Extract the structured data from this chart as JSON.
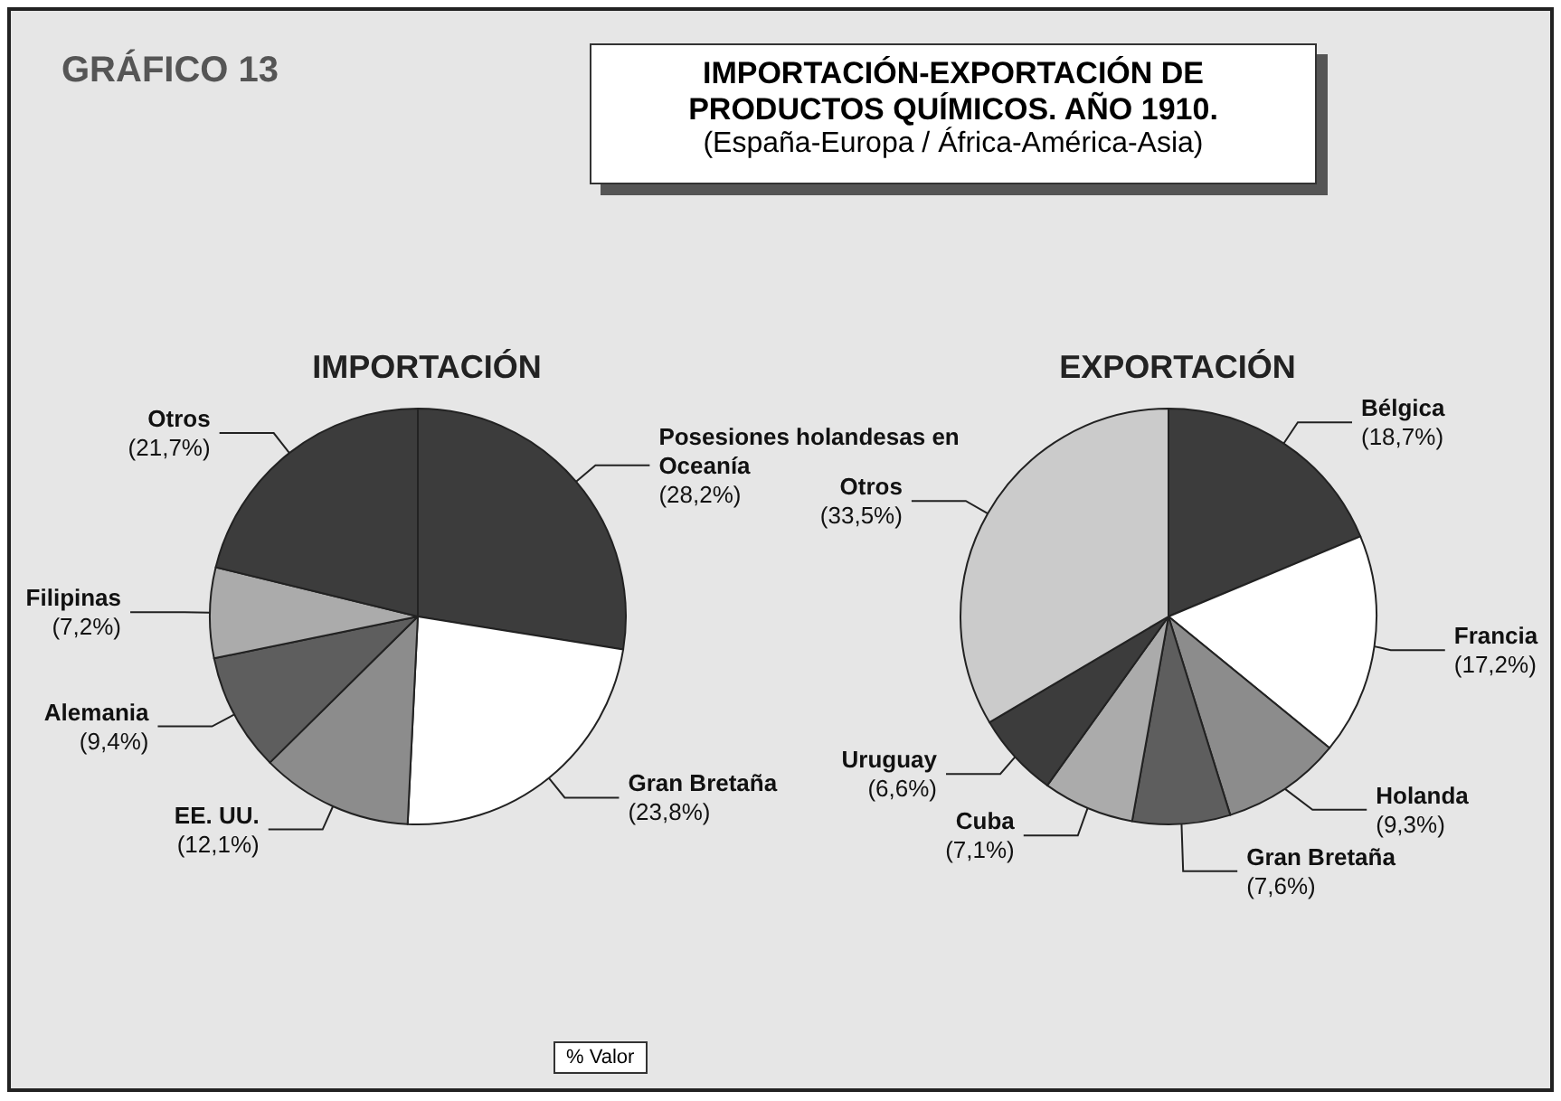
{
  "chart_data": [
    {
      "type": "pie",
      "title": "IMPORTACIÓN",
      "annotations": [
        "GRÁFICO 13",
        "IMPORTACIÓN-EXPORTACIÓN DE PRODUCTOS QUÍMICOS. AÑO 1910.",
        "(España-Europa / África-América-Asia)",
        "% Valor"
      ],
      "categories": [
        "Posesiones holandesas en Oceanía",
        "Gran Bretaña",
        "EE. UU.",
        "Alemania",
        "Filipinas",
        "Otros"
      ],
      "values": [
        28.2,
        23.8,
        12.1,
        9.4,
        7.2,
        21.7
      ],
      "value_labels": [
        "(28,2%)",
        "(23,8%)",
        "(12,1%)",
        "(9,4%)",
        "(7,2%)",
        "(21,7%)"
      ],
      "colors": [
        "#3c3c3c",
        "#ffffff",
        "#8c8c8c",
        "#5e5e5e",
        "#ababab",
        "#3c3c3c"
      ]
    },
    {
      "type": "pie",
      "title": "EXPORTACIÓN",
      "categories": [
        "Bélgica",
        "Francia",
        "Holanda",
        "Gran Bretaña",
        "Cuba",
        "Uruguay",
        "Otros"
      ],
      "values": [
        18.7,
        17.2,
        9.3,
        7.6,
        7.1,
        6.6,
        33.5
      ],
      "value_labels": [
        "(18,7%)",
        "(17,2%)",
        "(9,3%)",
        "(7,6%)",
        "(7,1%)",
        "(6,6%)",
        "(33,5%)"
      ],
      "colors": [
        "#3c3c3c",
        "#ffffff",
        "#8c8c8c",
        "#5e5e5e",
        "#ababab",
        "#3c3c3c",
        "#cbcbcb"
      ]
    }
  ]
}
